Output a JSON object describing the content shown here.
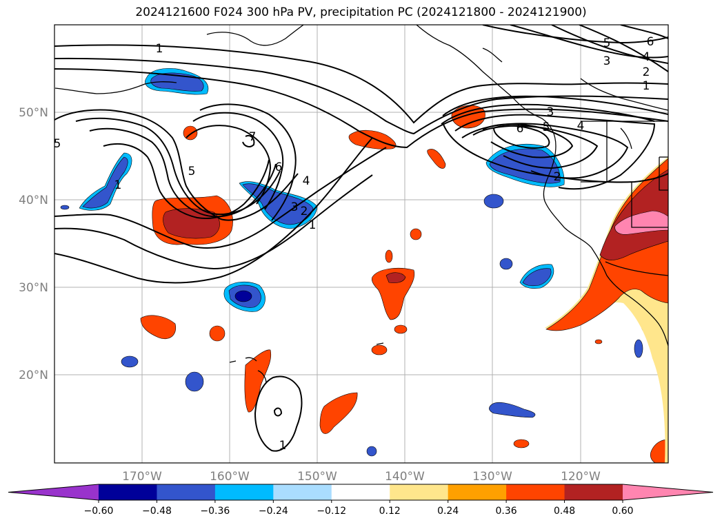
{
  "title": "2024121600 F024 300 hPa PV, precipitation PC (2024121800 - 2024121900)",
  "lat_labels": [
    "50°N",
    "40°N",
    "30°N",
    "20°N"
  ],
  "lon_labels": [
    "170°W",
    "160°W",
    "150°W",
    "140°W",
    "130°W",
    "120°W"
  ],
  "contour_labels": [
    "1",
    "1",
    "2",
    "3",
    "4",
    "5",
    "6",
    "7",
    "1",
    "2",
    "3",
    "4",
    "5",
    "6",
    "1",
    "2",
    "3",
    "4",
    "5",
    "6",
    "1",
    "5"
  ],
  "colorbar": {
    "labels": [
      "−0.60",
      "−0.48",
      "−0.36",
      "−0.24",
      "−0.12",
      "0.12",
      "0.24",
      "0.36",
      "0.48",
      "0.60"
    ],
    "colors": [
      "#9933cc",
      "#000099",
      "#3355cc",
      "#00bbff",
      "#aaddff",
      "#ffffff",
      "#ffe68c",
      "#ffa000",
      "#ff4400",
      "#b22222",
      "#ff85b0"
    ]
  }
}
